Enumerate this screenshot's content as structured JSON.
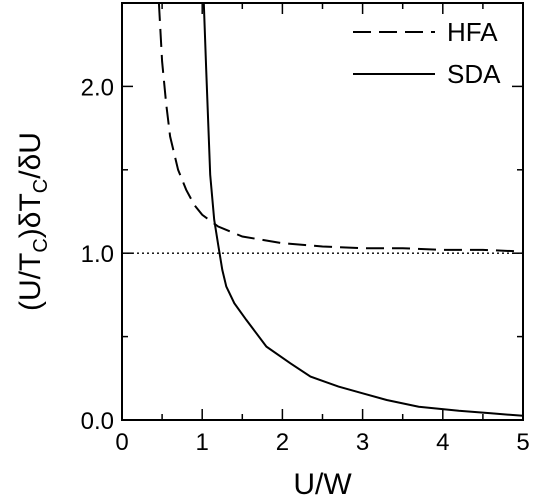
{
  "chart_data": {
    "type": "line",
    "xlabel": "U/W",
    "ylabel": {
      "parts": [
        "(U/T",
        "C",
        ")δT",
        "C",
        "/δU"
      ]
    },
    "xlim": [
      0,
      5
    ],
    "ylim": [
      0,
      2.5
    ],
    "x_ticks": [
      {
        "value": 0,
        "label": "0"
      },
      {
        "value": 1,
        "label": "1"
      },
      {
        "value": 2,
        "label": "2"
      },
      {
        "value": 3,
        "label": "3"
      },
      {
        "value": 4,
        "label": "4"
      },
      {
        "value": 5,
        "label": "5"
      }
    ],
    "x_minor_ticks": [
      0.5,
      1.5,
      2.5,
      3.5,
      4.5
    ],
    "y_ticks": [
      {
        "value": 0,
        "label": "0.0"
      },
      {
        "value": 1,
        "label": "1.0"
      },
      {
        "value": 2,
        "label": "2.0"
      }
    ],
    "y_minor_ticks": [
      0.5,
      1.5
    ],
    "reference_line": {
      "y": 1.0,
      "style": "dotted"
    },
    "legend_position": "top-right",
    "series": [
      {
        "name": "HFA",
        "style": "dashed",
        "x": [
          0.46,
          0.5,
          0.55,
          0.6,
          0.7,
          0.8,
          0.9,
          1.0,
          1.2,
          1.5,
          2.0,
          2.5,
          3.0,
          3.5,
          4.0,
          4.5,
          5.0
        ],
        "y": [
          2.5,
          2.15,
          1.9,
          1.7,
          1.5,
          1.38,
          1.29,
          1.23,
          1.16,
          1.1,
          1.06,
          1.04,
          1.03,
          1.03,
          1.02,
          1.02,
          1.01
        ]
      },
      {
        "name": "SDA",
        "style": "solid",
        "x": [
          1.02,
          1.05,
          1.1,
          1.15,
          1.2,
          1.25,
          1.3,
          1.4,
          1.55,
          1.8,
          2.1,
          2.35,
          2.7,
          3.0,
          3.3,
          3.7,
          4.2,
          4.6,
          5.0
        ],
        "y": [
          2.5,
          2.1,
          1.47,
          1.2,
          1.05,
          0.9,
          0.8,
          0.7,
          0.6,
          0.44,
          0.34,
          0.26,
          0.2,
          0.16,
          0.12,
          0.08,
          0.055,
          0.04,
          0.025
        ]
      }
    ]
  }
}
